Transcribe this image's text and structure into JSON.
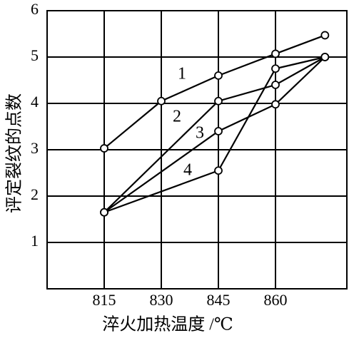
{
  "chart_data": {
    "type": "line",
    "x_label": "淬火加热温度 /℃",
    "y_label": "评定裂纹的点数",
    "xlim": [
      800,
      878.75
    ],
    "xticks": [
      815,
      830,
      845,
      860
    ],
    "ylim": [
      0,
      6
    ],
    "yticks": [
      1,
      2,
      3,
      4,
      5,
      6
    ],
    "grid": true,
    "color": "#000000",
    "series": [
      {
        "name": "1",
        "x": [
          815,
          830,
          845,
          860,
          873
        ],
        "values": [
          3.03,
          4.05,
          4.6,
          5.07,
          5.47
        ]
      },
      {
        "name": "2",
        "x": [
          815,
          845,
          860,
          873
        ],
        "values": [
          1.65,
          4.05,
          4.4,
          5.0
        ]
      },
      {
        "name": "3",
        "x": [
          815,
          845,
          860,
          873
        ],
        "values": [
          1.65,
          3.4,
          3.98,
          5.0
        ]
      },
      {
        "name": "4",
        "x": [
          815,
          845,
          860,
          873
        ],
        "values": [
          1.65,
          2.55,
          4.75,
          5.0
        ]
      }
    ]
  }
}
